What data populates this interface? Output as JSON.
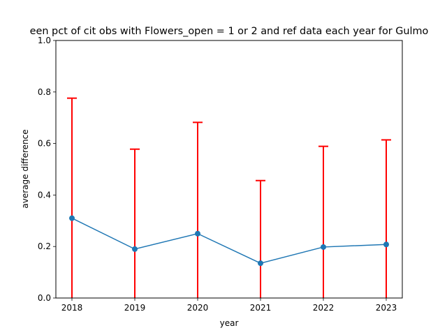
{
  "chart_data": {
    "type": "line",
    "title": "een pct of cit obs with Flowers_open = 1 or 2 and ref data each year for Gulmo",
    "xlabel": "year",
    "ylabel": "average difference",
    "x": [
      2018,
      2019,
      2020,
      2021,
      2022,
      2023
    ],
    "x_tick_labels": [
      "2018",
      "2019",
      "2020",
      "2021",
      "2022",
      "2023"
    ],
    "ylim": [
      0,
      1
    ],
    "y_ticks": [
      0.0,
      0.2,
      0.4,
      0.6,
      0.8,
      1.0
    ],
    "y_tick_labels": [
      "0.0",
      "0.2",
      "0.4",
      "0.6",
      "0.8",
      "1.0"
    ],
    "grid": false,
    "series": [
      {
        "name": "average difference",
        "values": [
          0.31,
          0.19,
          0.25,
          0.135,
          0.198,
          0.208
        ],
        "error_upper": [
          0.776,
          0.578,
          0.682,
          0.456,
          0.589,
          0.614
        ],
        "error_lower": [
          0.0,
          0.0,
          0.0,
          0.0,
          0.0,
          0.0
        ],
        "line_color": "#1f77b4",
        "error_color": "#ff0000"
      }
    ]
  }
}
